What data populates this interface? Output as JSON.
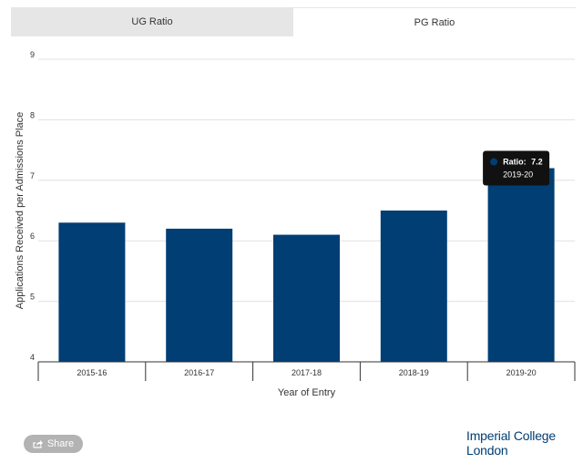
{
  "tabs": [
    {
      "label": "UG Ratio",
      "active": false
    },
    {
      "label": "PG Ratio",
      "active": true
    }
  ],
  "chart_data": {
    "type": "bar",
    "categories": [
      "2015-16",
      "2016-17",
      "2017-18",
      "2018-19",
      "2019-20"
    ],
    "values": [
      6.3,
      6.2,
      6.1,
      6.5,
      7.2
    ],
    "xlabel": "Year of Entry",
    "ylabel": "Applications Received per Admissions Place",
    "ylim": [
      4,
      9
    ],
    "yticks": [
      "4",
      "5",
      "6",
      "7",
      "8",
      "9"
    ],
    "grid": true,
    "bar_color": "#003E74"
  },
  "tooltip": {
    "label": "Ratio:",
    "value": "7.2",
    "category": "2019-20",
    "marker_color": "#003E74"
  },
  "share": {
    "label": "Share",
    "icon": "share-icon"
  },
  "brand": {
    "line1": "Imperial College",
    "line2": "London",
    "color": "#003E74"
  }
}
